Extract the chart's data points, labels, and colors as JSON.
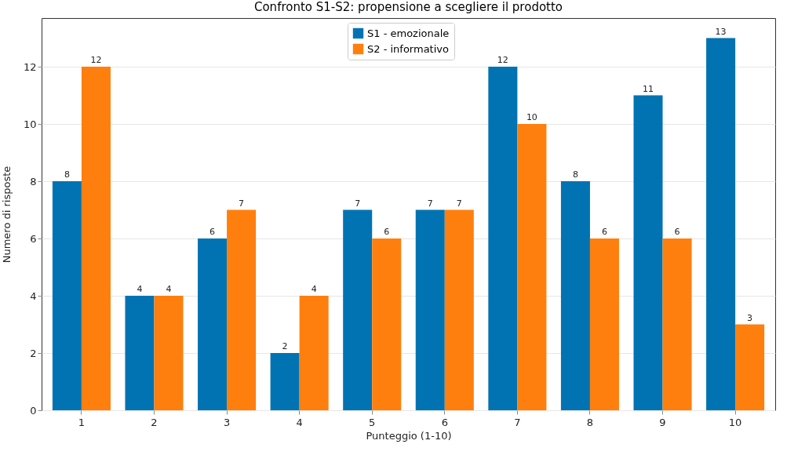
{
  "chart_data": {
    "type": "bar",
    "title": "Confronto S1-S2: propensione a scegliere il prodotto",
    "xlabel": "Punteggio (1-10)",
    "ylabel": "Numero di risposte",
    "categories": [
      "1",
      "2",
      "3",
      "4",
      "5",
      "6",
      "7",
      "8",
      "9",
      "10"
    ],
    "series": [
      {
        "name": "S1 - emozionale",
        "color": "#0173b2",
        "values": [
          8,
          4,
          6,
          2,
          7,
          7,
          12,
          8,
          11,
          13
        ]
      },
      {
        "name": "S2 - informativo",
        "color": "#ff7f0e",
        "values": [
          12,
          4,
          7,
          4,
          6,
          7,
          10,
          6,
          6,
          3
        ]
      }
    ],
    "ylim": [
      0,
      13.7
    ],
    "yticks": [
      0,
      2,
      4,
      6,
      8,
      10,
      12
    ],
    "grid": "y",
    "legend": "top",
    "data_labels": true
  }
}
